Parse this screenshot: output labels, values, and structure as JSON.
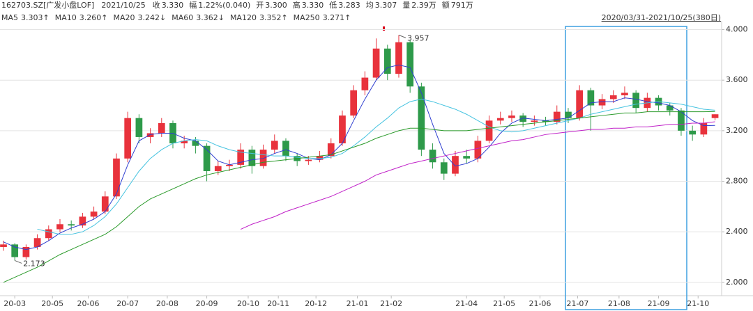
{
  "chart_data": {
    "type": "candlestick",
    "header": {
      "symbol": "162703.SZ[广发小盘LOF]",
      "date": "2021/10/25",
      "items": [
        {
          "label": "收",
          "value": "3.330",
          "color": "#d9001b"
        },
        {
          "label": "幅",
          "value": "1.22%(0.040)",
          "color": "#d9001b"
        },
        {
          "label": "开",
          "value": "3.300",
          "color": "#d9001b"
        },
        {
          "label": "高",
          "value": "3.330",
          "color": "#d9001b"
        },
        {
          "label": "低",
          "value": "3.283",
          "color": "#1a8a1a"
        },
        {
          "label": "均",
          "value": "3.307",
          "color": "#d9001b"
        },
        {
          "label": "量",
          "value": "2.39万",
          "color": "#333333"
        },
        {
          "label": "额",
          "value": "791万",
          "color": "#333333"
        }
      ],
      "range": "2020/03/31-2021/10/25(380日)"
    },
    "ma_legend": [
      {
        "label": "MA5",
        "value": "3.303↑",
        "color": "#d9001b"
      },
      {
        "label": "MA10",
        "value": "3.260↑",
        "color": "#1f4fa0"
      },
      {
        "label": "MA20",
        "value": "3.242↓",
        "color": "#2f3fd0"
      },
      {
        "label": "MA60",
        "value": "3.362↓",
        "color": "#2bb5d8"
      },
      {
        "label": "MA120",
        "value": "3.352↑",
        "color": "#2a9a2a"
      },
      {
        "label": "MA250",
        "value": "3.271↑",
        "color": "#c020c8"
      }
    ],
    "x": [
      0,
      6,
      12,
      18,
      24,
      30,
      36,
      42,
      48,
      54,
      60,
      66,
      72,
      78,
      84,
      90,
      96,
      102,
      108,
      114,
      120,
      126,
      132,
      138,
      144,
      150,
      156,
      162,
      168,
      174,
      180,
      186,
      192,
      198,
      204,
      210,
      216,
      222,
      228,
      234,
      240,
      246,
      252,
      258,
      264,
      270,
      276,
      282,
      288,
      294,
      300,
      306,
      312,
      318,
      324,
      330,
      336,
      342,
      348,
      354,
      360,
      366,
      372,
      378
    ],
    "open": [
      2.28,
      2.3,
      2.2,
      2.28,
      2.35,
      2.42,
      2.46,
      2.45,
      2.52,
      2.56,
      2.68,
      2.98,
      3.3,
      3.15,
      3.18,
      3.26,
      3.1,
      3.12,
      3.08,
      2.88,
      2.92,
      2.93,
      3.05,
      2.92,
      3.05,
      3.12,
      3.0,
      2.96,
      2.97,
      3.0,
      3.1,
      3.32,
      3.52,
      3.62,
      3.85,
      3.65,
      3.9,
      3.55,
      3.05,
      2.95,
      2.86,
      3.0,
      2.98,
      3.12,
      3.28,
      3.3,
      3.32,
      3.27,
      3.28,
      3.27,
      3.35,
      3.3,
      3.52,
      3.4,
      3.45,
      3.48,
      3.5,
      3.38,
      3.46,
      3.4,
      3.36,
      3.2,
      3.17,
      3.3
    ],
    "high": [
      2.33,
      2.31,
      2.3,
      2.38,
      2.45,
      2.5,
      2.49,
      2.55,
      2.6,
      2.72,
      3.02,
      3.35,
      3.33,
      3.22,
      3.3,
      3.28,
      3.16,
      3.15,
      3.1,
      2.96,
      2.97,
      3.1,
      3.08,
      3.09,
      3.17,
      3.14,
      3.02,
      3.0,
      3.04,
      3.14,
      3.36,
      3.56,
      3.67,
      3.93,
      3.88,
      3.957,
      3.92,
      3.58,
      3.1,
      2.98,
      3.04,
      3.05,
      3.16,
      3.32,
      3.35,
      3.36,
      3.34,
      3.32,
      3.31,
      3.4,
      3.38,
      3.56,
      3.54,
      3.49,
      3.52,
      3.55,
      3.52,
      3.5,
      3.48,
      3.42,
      3.38,
      3.24,
      3.3,
      3.33
    ],
    "low": [
      2.25,
      2.173,
      2.18,
      2.26,
      2.33,
      2.4,
      2.41,
      2.43,
      2.5,
      2.54,
      2.66,
      2.95,
      3.1,
      3.1,
      3.15,
      3.06,
      3.06,
      3.02,
      2.8,
      2.85,
      2.88,
      2.9,
      2.86,
      2.9,
      3.02,
      2.96,
      2.92,
      2.93,
      2.95,
      2.98,
      3.08,
      3.3,
      3.48,
      3.6,
      3.6,
      3.62,
      3.5,
      3.0,
      2.9,
      2.81,
      2.84,
      2.94,
      2.95,
      3.1,
      3.25,
      3.27,
      3.23,
      3.24,
      3.24,
      3.25,
      3.26,
      3.28,
      3.2,
      3.37,
      3.42,
      3.45,
      3.34,
      3.35,
      3.36,
      3.32,
      3.16,
      3.12,
      3.15,
      3.283
    ],
    "close": [
      2.3,
      2.2,
      2.28,
      2.35,
      2.42,
      2.46,
      2.45,
      2.52,
      2.56,
      2.68,
      2.98,
      3.3,
      3.15,
      3.18,
      3.26,
      3.1,
      3.12,
      3.08,
      2.88,
      2.92,
      2.93,
      3.05,
      2.92,
      3.05,
      3.12,
      3.0,
      2.96,
      2.97,
      3.0,
      3.1,
      3.32,
      3.52,
      3.62,
      3.85,
      3.65,
      3.9,
      3.55,
      3.05,
      2.95,
      2.86,
      3.0,
      2.98,
      3.12,
      3.28,
      3.3,
      3.32,
      3.27,
      3.28,
      3.27,
      3.35,
      3.3,
      3.52,
      3.4,
      3.45,
      3.48,
      3.5,
      3.38,
      3.46,
      3.4,
      3.36,
      3.2,
      3.17,
      3.26,
      3.33
    ],
    "up_color": "#e8323c",
    "down_color": "#2e9a4a",
    "series": [
      {
        "name": "MA20",
        "color": "#2f3fd0",
        "values": [
          2.32,
          2.28,
          2.26,
          2.28,
          2.33,
          2.39,
          2.43,
          2.46,
          2.5,
          2.56,
          2.7,
          2.93,
          3.12,
          3.17,
          3.18,
          3.18,
          3.14,
          3.12,
          3.05,
          2.96,
          2.93,
          2.95,
          2.97,
          2.98,
          3.02,
          3.05,
          3.02,
          2.98,
          2.97,
          3.01,
          3.1,
          3.28,
          3.45,
          3.6,
          3.7,
          3.72,
          3.7,
          3.5,
          3.25,
          3.02,
          2.92,
          2.94,
          2.98,
          3.07,
          3.18,
          3.26,
          3.3,
          3.29,
          3.28,
          3.29,
          3.3,
          3.36,
          3.42,
          3.43,
          3.43,
          3.46,
          3.45,
          3.43,
          3.42,
          3.4,
          3.35,
          3.28,
          3.24,
          3.242
        ]
      },
      {
        "name": "MA60",
        "color": "#45c3e0",
        "values": [
          null,
          null,
          null,
          2.42,
          2.4,
          2.38,
          2.38,
          2.4,
          2.45,
          2.52,
          2.62,
          2.75,
          2.88,
          2.98,
          3.05,
          3.1,
          3.12,
          3.13,
          3.12,
          3.08,
          3.05,
          3.03,
          3.02,
          3.01,
          3.0,
          3.0,
          2.99,
          2.98,
          2.98,
          2.99,
          3.02,
          3.08,
          3.15,
          3.23,
          3.3,
          3.38,
          3.43,
          3.45,
          3.43,
          3.4,
          3.37,
          3.33,
          3.28,
          3.23,
          3.2,
          3.19,
          3.2,
          3.22,
          3.24,
          3.26,
          3.28,
          3.3,
          3.33,
          3.35,
          3.37,
          3.39,
          3.41,
          3.42,
          3.43,
          3.42,
          3.41,
          3.39,
          3.37,
          3.362
        ]
      },
      {
        "name": "MA120",
        "color": "#2a9a2a",
        "values": [
          2.0,
          2.04,
          2.08,
          2.12,
          2.17,
          2.22,
          2.26,
          2.3,
          2.34,
          2.38,
          2.44,
          2.52,
          2.6,
          2.66,
          2.7,
          2.74,
          2.78,
          2.82,
          2.85,
          2.87,
          2.89,
          2.91,
          2.93,
          2.95,
          2.96,
          2.97,
          2.98,
          2.99,
          3.0,
          3.01,
          3.04,
          3.07,
          3.1,
          3.14,
          3.17,
          3.2,
          3.22,
          3.22,
          3.21,
          3.2,
          3.2,
          3.2,
          3.21,
          3.22,
          3.23,
          3.24,
          3.25,
          3.26,
          3.27,
          3.28,
          3.29,
          3.3,
          3.31,
          3.32,
          3.33,
          3.34,
          3.34,
          3.35,
          3.35,
          3.35,
          3.35,
          3.35,
          3.35,
          3.352
        ]
      },
      {
        "name": "MA250",
        "color": "#c020c8",
        "values": [
          null,
          null,
          null,
          null,
          null,
          null,
          null,
          null,
          null,
          null,
          null,
          null,
          null,
          null,
          null,
          null,
          null,
          null,
          null,
          null,
          null,
          2.42,
          2.46,
          2.49,
          2.52,
          2.56,
          2.59,
          2.62,
          2.65,
          2.68,
          2.72,
          2.76,
          2.8,
          2.85,
          2.88,
          2.91,
          2.94,
          2.96,
          2.98,
          3.0,
          3.02,
          3.04,
          3.06,
          3.08,
          3.1,
          3.12,
          3.13,
          3.15,
          3.17,
          3.18,
          3.19,
          3.2,
          3.21,
          3.21,
          3.22,
          3.22,
          3.23,
          3.23,
          3.24,
          3.25,
          3.25,
          3.26,
          3.26,
          3.271
        ]
      }
    ],
    "annotations": [
      {
        "text": "3.957",
        "x": 210,
        "y": 3.957,
        "color": "#d9001b"
      },
      {
        "text": "2.173",
        "x": 6,
        "y": 2.173,
        "color": "#1a8a1a"
      }
    ],
    "xlim": [
      -1.85,
      381.5
    ],
    "ylim": [
      1.922,
      4.025
    ],
    "yticks": [
      {
        "value": 2,
        "label": "2.000"
      },
      {
        "value": 2.4,
        "label": "2.400"
      },
      {
        "value": 2.8,
        "label": "2.800"
      },
      {
        "value": 3.2,
        "label": "3.200"
      },
      {
        "value": 3.6,
        "label": "3.600"
      },
      {
        "value": 4,
        "label": "4.000"
      }
    ],
    "xticks": [
      {
        "value": 6,
        "label": "20-03"
      },
      {
        "value": 26,
        "label": "20-05"
      },
      {
        "value": 45,
        "label": "20-06"
      },
      {
        "value": 66,
        "label": "20-07"
      },
      {
        "value": 87,
        "label": "20-08"
      },
      {
        "value": 108,
        "label": "20-09"
      },
      {
        "value": 130,
        "label": "20-10"
      },
      {
        "value": 146,
        "label": "20-11"
      },
      {
        "value": 166,
        "label": "20-12"
      },
      {
        "value": 188,
        "label": "21-01"
      },
      {
        "value": 206,
        "label": "21-02"
      },
      {
        "value": 246,
        "label": "21-04"
      },
      {
        "value": 266,
        "label": "21-05"
      },
      {
        "value": 285,
        "label": "21-06"
      },
      {
        "value": 305,
        "label": "21-07"
      },
      {
        "value": 327,
        "label": "21-08"
      },
      {
        "value": 348,
        "label": "21-09"
      },
      {
        "value": 369,
        "label": "21-10"
      }
    ],
    "grid": true
  }
}
